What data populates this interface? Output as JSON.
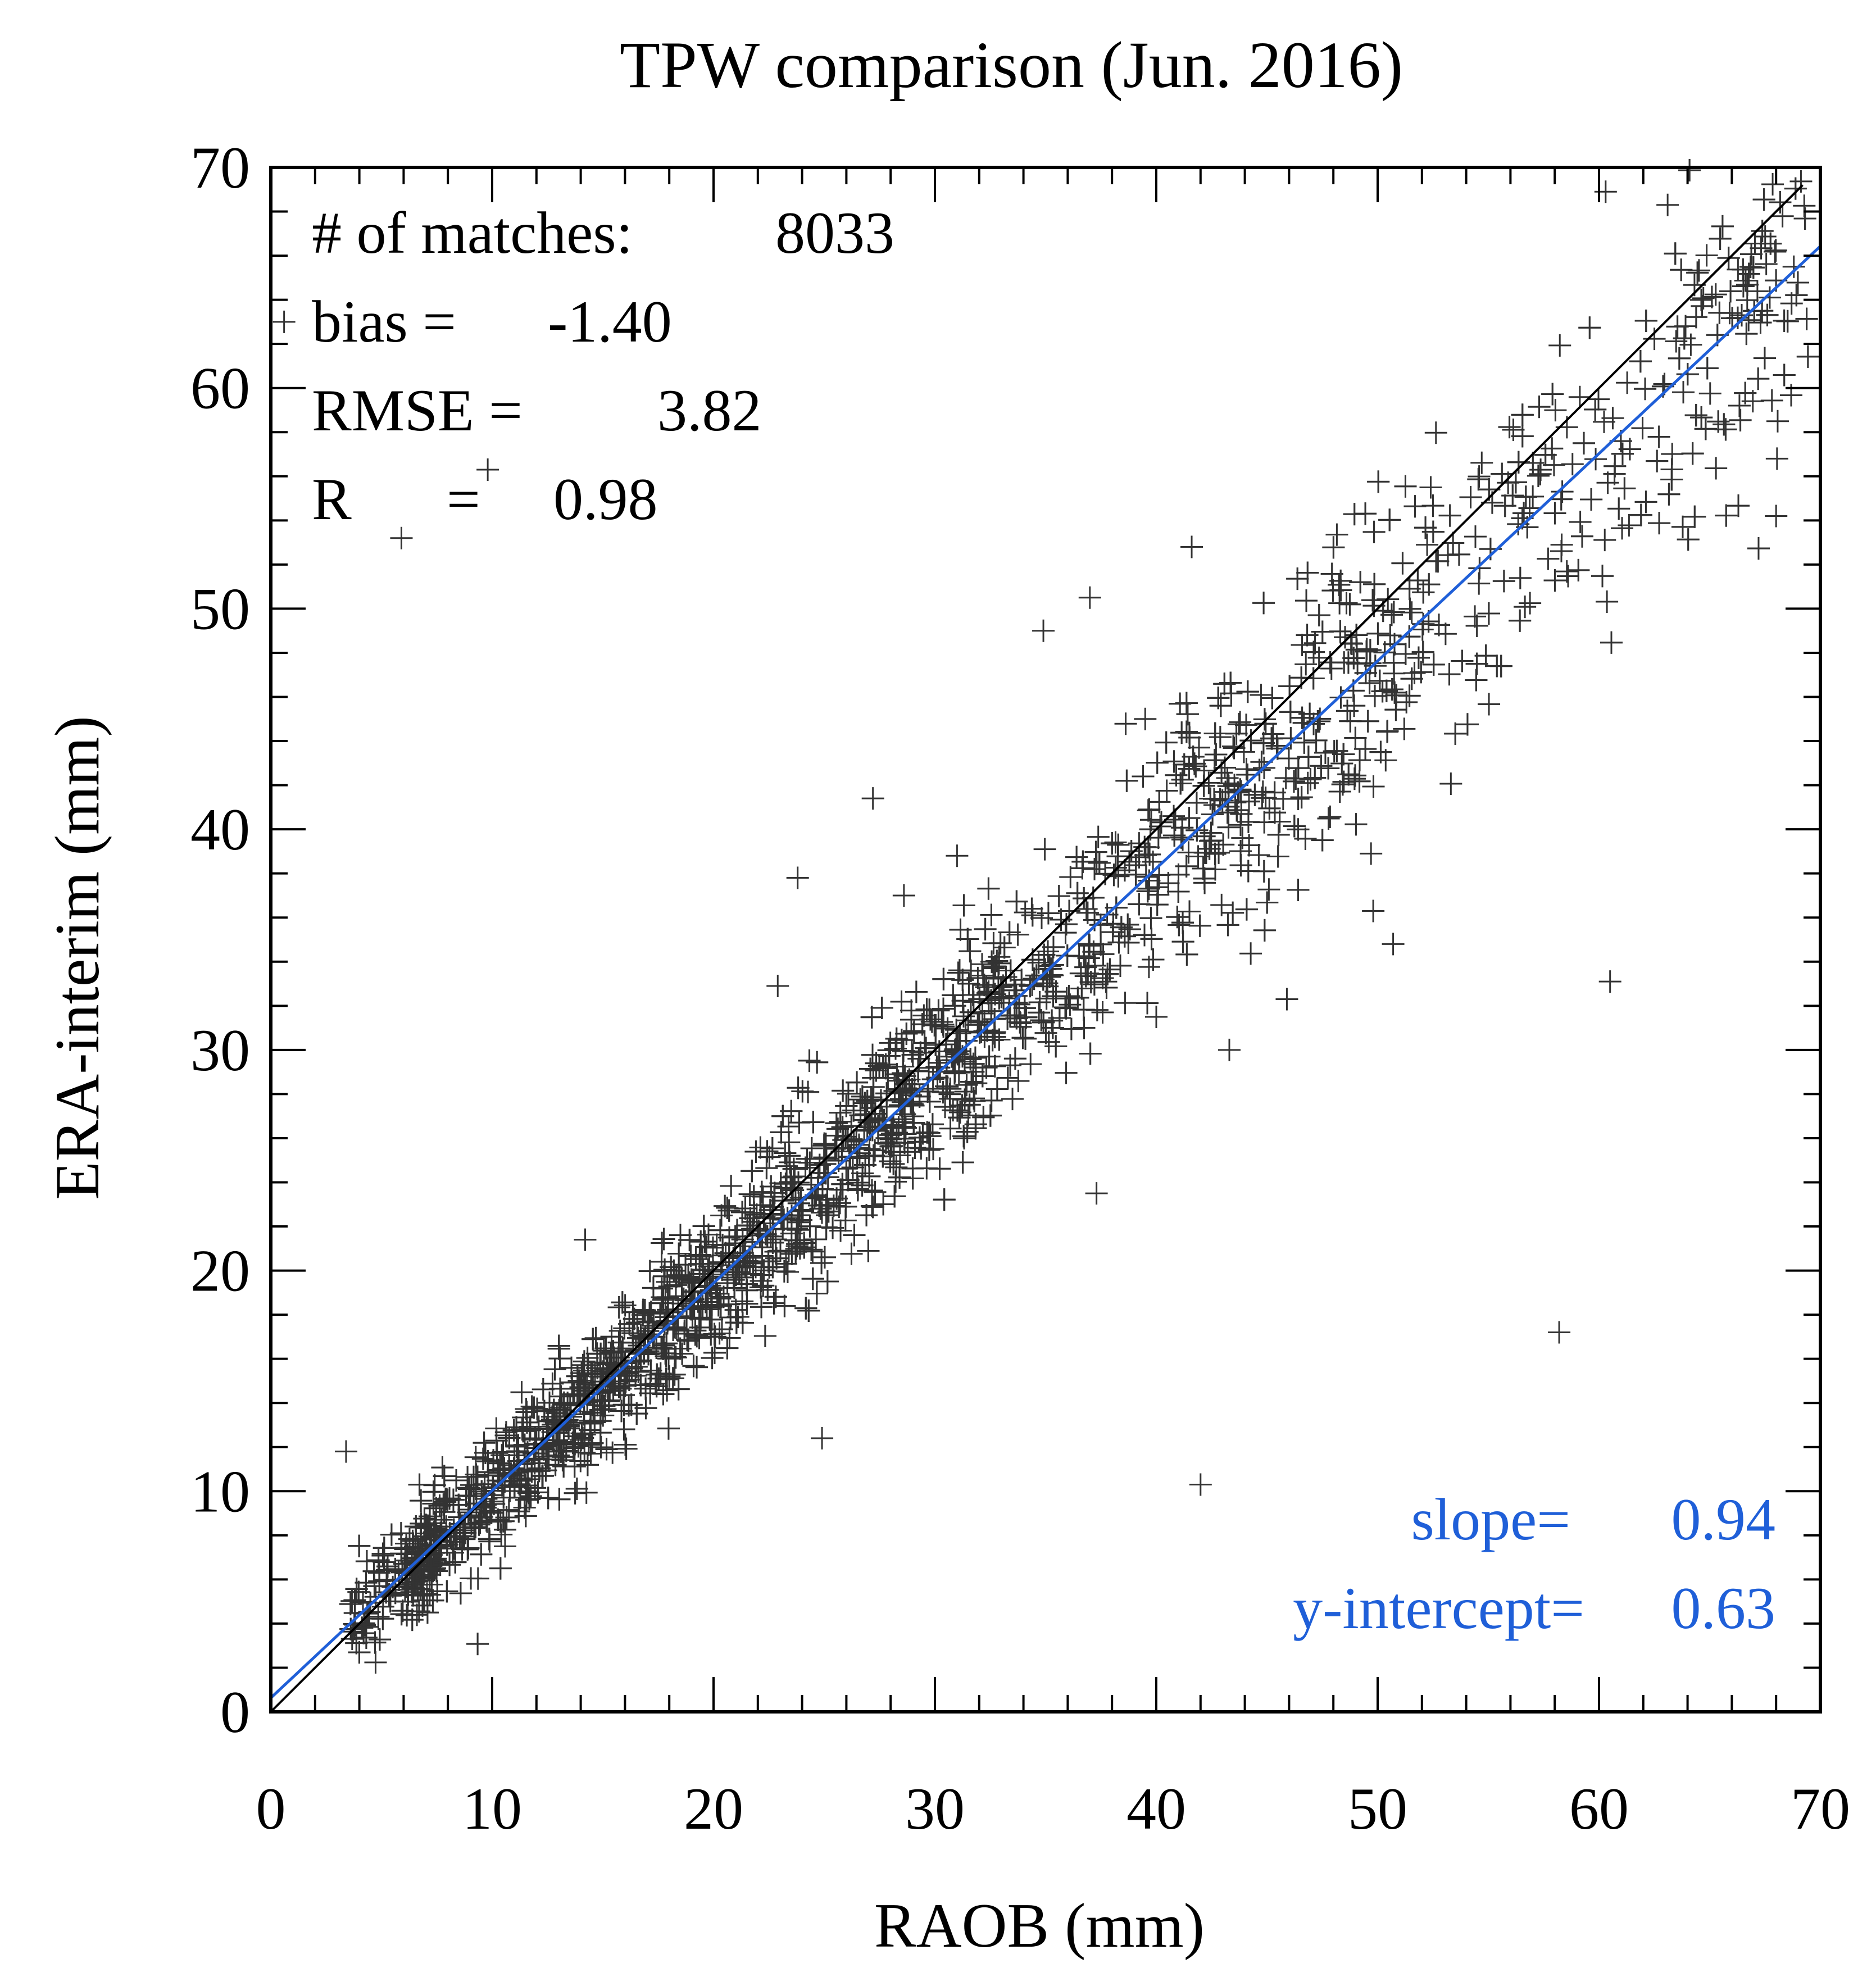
{
  "chart_data": {
    "type": "scatter",
    "title": "TPW comparison (Jun. 2016)",
    "xlabel": "RAOB (mm)",
    "ylabel": "ERA-interim (mm)",
    "xlim": [
      0,
      70
    ],
    "ylim": [
      0,
      70
    ],
    "xticks": [
      0,
      10,
      20,
      30,
      40,
      50,
      60,
      70
    ],
    "yticks": [
      0,
      10,
      20,
      30,
      40,
      50,
      60,
      70
    ],
    "minor_tick_step": 2,
    "grid": false,
    "marker": "+",
    "marker_color": "#333333",
    "one_to_one_line_color": "#000000",
    "fit_line_color": "#1f5fd8",
    "stats": {
      "matches_label": "# of matches:",
      "matches_value": "8033",
      "bias_label": "bias =",
      "bias_value": "-1.40",
      "rmse_label": "RMSE =",
      "rmse_value": "3.82",
      "r_label": "R",
      "r_eq": "=",
      "r_value": "0.98"
    },
    "fit": {
      "slope_label": "slope=",
      "slope": 0.94,
      "slope_text": "0.94",
      "intercept_label": "y-intercept=",
      "intercept": 0.63,
      "intercept_text": "0.63"
    },
    "cluster": {
      "count": 8033,
      "x_range": [
        3,
        70
      ],
      "note": "dense band around the fit line, spread grows with x"
    },
    "outliers": [
      {
        "x": 5.9,
        "y": 53.2
      },
      {
        "x": 9.8,
        "y": 56.3
      },
      {
        "x": 3.4,
        "y": 11.8
      },
      {
        "x": 0.6,
        "y": 63.0
      },
      {
        "x": 27.2,
        "y": 41.4
      },
      {
        "x": 23.8,
        "y": 37.8
      },
      {
        "x": 22.9,
        "y": 32.9
      },
      {
        "x": 24.9,
        "y": 12.4
      },
      {
        "x": 37.3,
        "y": 23.5
      },
      {
        "x": 40.0,
        "y": 31.5
      },
      {
        "x": 42.0,
        "y": 10.3
      },
      {
        "x": 43.3,
        "y": 30.0
      },
      {
        "x": 45.9,
        "y": 32.3
      },
      {
        "x": 49.7,
        "y": 38.9
      },
      {
        "x": 50.7,
        "y": 34.8
      },
      {
        "x": 49.8,
        "y": 36.3
      },
      {
        "x": 58.2,
        "y": 17.2
      },
      {
        "x": 60.5,
        "y": 33.1
      },
      {
        "x": 34.9,
        "y": 49.0
      },
      {
        "x": 37.0,
        "y": 50.5
      },
      {
        "x": 39.5,
        "y": 45.0
      },
      {
        "x": 41.6,
        "y": 52.8
      },
      {
        "x": 60.3,
        "y": 68.9
      },
      {
        "x": 63.1,
        "y": 68.3
      },
      {
        "x": 68.0,
        "y": 54.2
      },
      {
        "x": 65.9,
        "y": 63.4
      },
      {
        "x": 68.8,
        "y": 65.5
      },
      {
        "x": 31.0,
        "y": 38.8
      },
      {
        "x": 28.6,
        "y": 37.0
      },
      {
        "x": 14.2,
        "y": 21.4
      }
    ]
  }
}
